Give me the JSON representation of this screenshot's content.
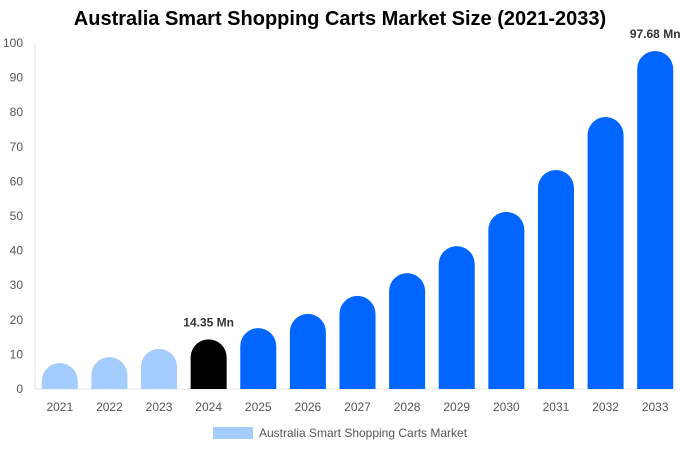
{
  "chart_data": {
    "type": "bar",
    "title": "Australia Smart Shopping Carts Market Size (2021-2033)",
    "categories": [
      "2021",
      "2022",
      "2023",
      "2024",
      "2025",
      "2026",
      "2027",
      "2028",
      "2029",
      "2030",
      "2031",
      "2032",
      "2033"
    ],
    "series": [
      {
        "name": "Australia Smart Shopping Carts Market",
        "values": [
          7.5,
          9.2,
          11.6,
          14.35,
          17.6,
          21.7,
          26.9,
          33.5,
          41.3,
          51.2,
          63.3,
          78.6,
          97.68
        ]
      }
    ],
    "data_labels": {
      "2024": "14.35 Mn",
      "2033": "97.68 Mn"
    },
    "ylim": [
      0,
      100
    ],
    "yticks": [
      0,
      10,
      20,
      30,
      40,
      50,
      60,
      70,
      80,
      90,
      100
    ],
    "colors": {
      "historical": "#a4ccfd",
      "base_year": "#000000",
      "forecast": "#0066ff"
    },
    "legend": "bottom",
    "grid": false
  }
}
